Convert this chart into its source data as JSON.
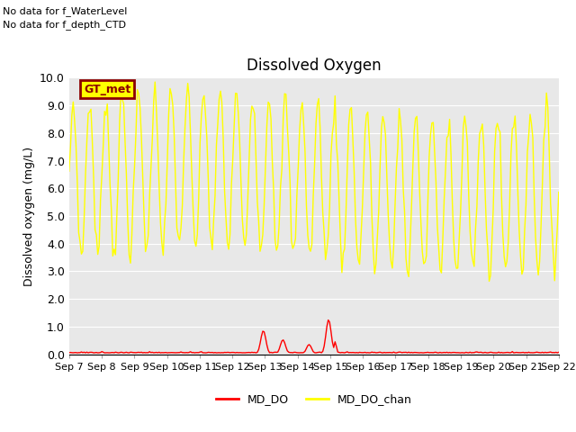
{
  "title": "Dissolved Oxygen",
  "ylabel": "Dissolved oxygen (mg/L)",
  "ylim": [
    0.0,
    10.0
  ],
  "yticks": [
    0.0,
    1.0,
    2.0,
    3.0,
    4.0,
    5.0,
    6.0,
    7.0,
    8.0,
    9.0,
    10.0
  ],
  "xtick_labels": [
    "Sep 7",
    "Sep 8",
    "Sep 9",
    "Sep 10",
    "Sep 11",
    "Sep 12",
    "Sep 13",
    "Sep 14",
    "Sep 15",
    "Sep 16",
    "Sep 17",
    "Sep 18",
    "Sep 19",
    "Sep 20",
    "Sep 21",
    "Sep 22"
  ],
  "no_data_text1": "No data for f_WaterLevel",
  "no_data_text2": "No data for f_depth_CTD",
  "gt_met_label": "GT_met",
  "background_color": "#e8e8e8",
  "line_color_do": "red",
  "line_color_chan": "yellow",
  "legend_labels": [
    "MD_DO",
    "MD_DO_chan"
  ],
  "figsize": [
    6.4,
    4.8
  ],
  "dpi": 100
}
